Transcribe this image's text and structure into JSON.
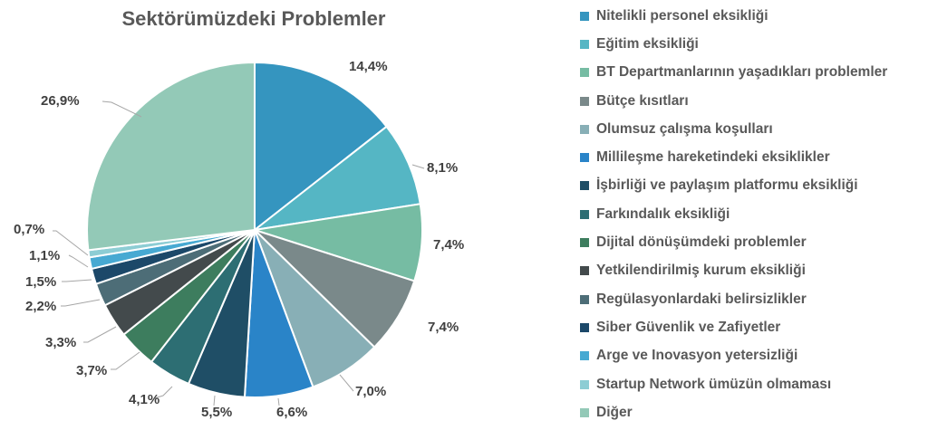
{
  "chart_data": {
    "type": "pie",
    "title": "Sektörümüzdeki Problemler",
    "legend_position": "right",
    "categories": [
      "Nitelikli personel eksikliği",
      "Eğitim eksikliği",
      "BT Departmanlarının yaşadıkları problemler",
      "Bütçe kısıtları",
      "Olumsuz çalışma koşulları",
      "Millileşme hareketindeki eksiklikler",
      "İşbirliği ve paylaşım platformu eksikliği",
      "Farkındalık eksikliği",
      "Dijital dönüşümdeki problemler",
      "Yetkilendirilmiş kurum eksikliği",
      "Regülasyonlardaki belirsizlikler",
      "Siber Güvenlik ve Zafiyetler",
      "Arge ve Inovasyon yetersizliği",
      "Startup Network ümüzün olmaması",
      "Diğer"
    ],
    "values": [
      14.4,
      8.1,
      7.4,
      7.4,
      7.0,
      6.6,
      5.5,
      4.1,
      3.7,
      3.3,
      2.2,
      1.5,
      1.1,
      0.7,
      26.9
    ],
    "labels": [
      "14,4%",
      "8,1%",
      "7,4%",
      "7,4%",
      "7,0%",
      "6,6%",
      "5,5%",
      "4,1%",
      "3,7%",
      "3,3%",
      "2,2%",
      "1,5%",
      "1,1%",
      "0,7%",
      "26,9%"
    ],
    "colors": [
      "#3595bf",
      "#55b6c4",
      "#76bca3",
      "#7a898a",
      "#88afb6",
      "#2a84c8",
      "#1f4e66",
      "#2d6e73",
      "#3d7d5e",
      "#434a4c",
      "#4d6d77",
      "#1c4869",
      "#47a9d2",
      "#8dcdd4",
      "#93c9b7"
    ]
  }
}
